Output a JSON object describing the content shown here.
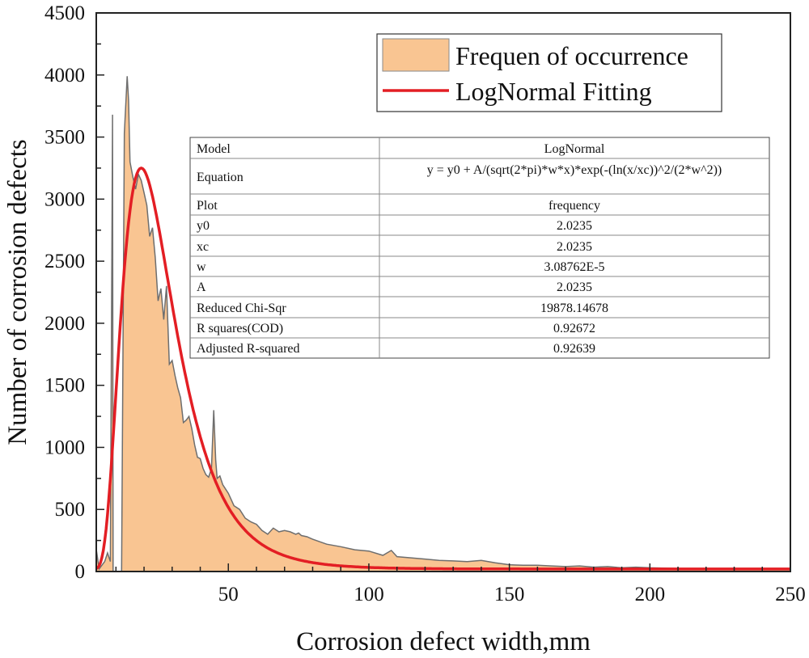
{
  "chart_data": {
    "type": "area",
    "xlabel": "Corrosion defect width,mm",
    "ylabel": "Number of corrosion defects",
    "xlim": [
      3,
      250
    ],
    "ylim": [
      0,
      4500
    ],
    "xticks": [
      50,
      100,
      150,
      200,
      250
    ],
    "yticks": [
      0,
      500,
      1000,
      1500,
      2000,
      2500,
      3000,
      3500,
      4000,
      4500
    ],
    "legend": {
      "position": "top-right",
      "entries": [
        {
          "label": "Frequen of occurrence",
          "color": "#f9c592",
          "kind": "fill"
        },
        {
          "label": "LogNormal Fitting",
          "color": "#e31e24",
          "kind": "line"
        }
      ]
    },
    "series": [
      {
        "name": "Frequen of occurrence",
        "fill": "#f9c592",
        "stroke": "#6e6e6e",
        "x": [
          3,
          4,
          5,
          6,
          7,
          8,
          8.8,
          9,
          9.5,
          10,
          10.5,
          11,
          11.5,
          12,
          13,
          14,
          14.5,
          15,
          16,
          17,
          18,
          19,
          20,
          21,
          22,
          23,
          24,
          25,
          26,
          27,
          28,
          29,
          30,
          31,
          32,
          33,
          34,
          35,
          36,
          37,
          38,
          39,
          40,
          41,
          42,
          43,
          44,
          44.8,
          45.5,
          46,
          47,
          48,
          50,
          52,
          54,
          56,
          58,
          60,
          62,
          64,
          66,
          68,
          70,
          72,
          74,
          75,
          76,
          78,
          80,
          85,
          90,
          95,
          100,
          105,
          108,
          110,
          115,
          120,
          125,
          130,
          135,
          140,
          145,
          150,
          155,
          160,
          165,
          170,
          175,
          180,
          185,
          190,
          195,
          200,
          210,
          220,
          230,
          240,
          250
        ],
        "y": [
          180,
          20,
          50,
          80,
          150,
          80,
          3680,
          0,
          0,
          0,
          0,
          0,
          0,
          0,
          3530,
          3990,
          3800,
          3300,
          3180,
          3080,
          3200,
          3150,
          3050,
          2950,
          2700,
          2770,
          2530,
          2180,
          2280,
          2030,
          2300,
          1670,
          1700,
          1580,
          1480,
          1400,
          1200,
          1220,
          1250,
          1150,
          1020,
          920,
          910,
          830,
          780,
          760,
          830,
          1300,
          900,
          750,
          770,
          700,
          630,
          530,
          500,
          430,
          400,
          380,
          330,
          300,
          350,
          320,
          330,
          320,
          300,
          310,
          290,
          280,
          260,
          220,
          200,
          175,
          165,
          130,
          170,
          120,
          110,
          100,
          90,
          85,
          80,
          90,
          70,
          55,
          50,
          50,
          45,
          40,
          45,
          35,
          40,
          30,
          35,
          30,
          25,
          25,
          20,
          20,
          25
        ]
      },
      {
        "name": "LogNormal Fitting",
        "color": "#e31e24",
        "model": "lognormal",
        "peak_x": 19,
        "peak_y": 3250,
        "sigma": 0.5,
        "baseline": 20
      }
    ],
    "fit_table": {
      "rows": [
        {
          "label": "Model",
          "value": "LogNormal"
        },
        {
          "label": "Equation",
          "value": "y = y0 + A/(sqrt(2*pi)*w*x)*exp(-(ln(x/xc))^2/(2*w^2))"
        },
        {
          "label": "Plot",
          "value": "frequency"
        },
        {
          "label": "y0",
          "value": "2.0235"
        },
        {
          "label": "xc",
          "value": "2.0235"
        },
        {
          "label": "w",
          "value": "3.08762E-5"
        },
        {
          "label": "A",
          "value": "2.0235"
        },
        {
          "label": "Reduced Chi-Sqr",
          "value": "19878.14678"
        },
        {
          "label": "R squares(COD)",
          "value": "0.92672"
        },
        {
          "label": "Adjusted R-squared",
          "value": "0.92639"
        }
      ]
    }
  }
}
